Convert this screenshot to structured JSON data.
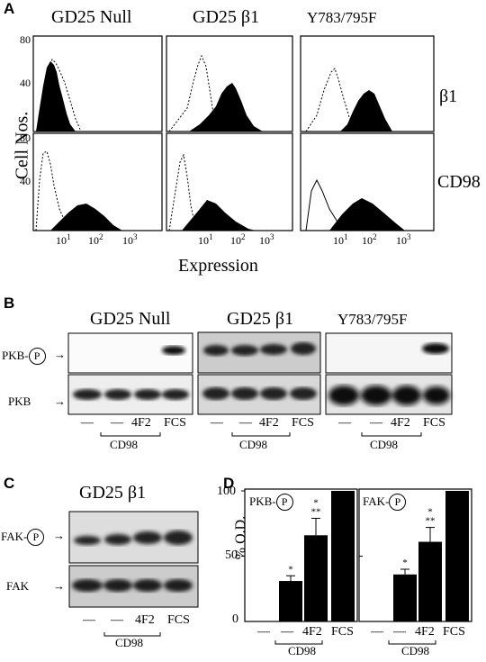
{
  "panelA": {
    "letter": "A",
    "columns": [
      "GD25 Null",
      "GD25 β1",
      "Y783/795F"
    ],
    "row_labels": [
      "β1",
      "CD98"
    ],
    "y_axis_label": "Cell Nos.",
    "y_ticks": [
      "80",
      "40"
    ],
    "x_axis_label": "Expression",
    "x_ticks": [
      "10",
      "10²",
      "10³"
    ],
    "x_tick_sup": [
      "1",
      "2",
      "3"
    ]
  },
  "panelB": {
    "letter": "B",
    "columns": [
      "GD25 Null",
      "GD25 β1",
      "Y783/795F"
    ],
    "row_labels": [
      "PKB-",
      "PKB"
    ],
    "phospho": "P",
    "lanes": [
      "—",
      "—",
      "4F2",
      "FCS"
    ],
    "group_label": "CD98"
  },
  "panelC": {
    "letter": "C",
    "title": "GD25 β1",
    "row_labels": [
      "FAK-",
      "FAK"
    ],
    "phospho": "P",
    "lanes": [
      "—",
      "—",
      "4F2",
      "FCS"
    ],
    "group_label": "CD98"
  },
  "panelD": {
    "letter": "D",
    "y_axis_label": "% O.D.",
    "y_ticks": [
      "100",
      "50",
      "0"
    ],
    "subpanels": [
      {
        "label": "PKB-",
        "phospho": "P"
      },
      {
        "label": "FAK-",
        "phospho": "P"
      }
    ],
    "lanes": [
      "—",
      "—",
      "4F2",
      "FCS"
    ],
    "group_label": "CD98",
    "sig_single": "*",
    "sig_double": "**"
  },
  "chart_data": {
    "type": "bar",
    "ylim": [
      0,
      100
    ],
    "ylabel": "% O.D.",
    "categories": [
      "—",
      "—",
      "4F2",
      "FCS"
    ],
    "series": [
      {
        "name": "PKB-P",
        "values": [
          0,
          31,
          66,
          100
        ],
        "errors": [
          0,
          4,
          13,
          0
        ]
      },
      {
        "name": "FAK-P",
        "values": [
          0,
          36,
          61,
          100
        ],
        "errors": [
          0,
          4,
          11,
          0
        ]
      }
    ]
  }
}
